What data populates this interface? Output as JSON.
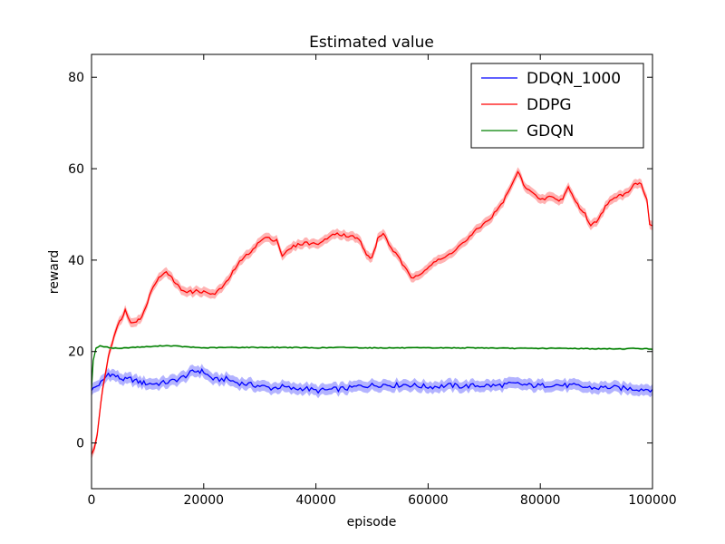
{
  "chart_data": {
    "type": "line",
    "title": "Estimated value",
    "xlabel": "episode",
    "ylabel": "reward",
    "xlim": [
      0,
      100000
    ],
    "ylim": [
      -10,
      85
    ],
    "xticks": [
      0,
      20000,
      40000,
      60000,
      80000,
      100000
    ],
    "yticks": [
      0,
      20,
      40,
      60,
      80
    ],
    "grid": false,
    "legend_position": "top-right",
    "series": [
      {
        "name": "DDQN_1000",
        "color": "#0000ff",
        "band_color": "#8080ff",
        "band": 1.2,
        "x": [
          0,
          1000,
          2000,
          3000,
          4000,
          5000,
          6000,
          7000,
          8000,
          9000,
          10000,
          12000,
          14000,
          16000,
          18000,
          19000,
          20000,
          21000,
          22000,
          24000,
          26000,
          28000,
          30000,
          32000,
          34000,
          36000,
          38000,
          40000,
          42000,
          44000,
          46000,
          48000,
          50000,
          52000,
          54000,
          56000,
          58000,
          60000,
          62000,
          64000,
          66000,
          68000,
          70000,
          72000,
          74000,
          76000,
          78000,
          80000,
          82000,
          84000,
          86000,
          88000,
          90000,
          92000,
          94000,
          96000,
          98000,
          100000
        ],
        "values": [
          11.5,
          12.5,
          13.5,
          15.2,
          14.8,
          14.2,
          13.8,
          14.0,
          13.5,
          13.2,
          13.0,
          13.0,
          13.4,
          14.2,
          15.5,
          15.8,
          15.6,
          14.5,
          13.8,
          14.0,
          13.2,
          12.8,
          12.5,
          12.0,
          12.3,
          11.8,
          12.0,
          11.4,
          11.6,
          11.8,
          12.0,
          12.5,
          12.6,
          12.8,
          12.6,
          12.8,
          12.5,
          12.3,
          12.4,
          12.6,
          12.4,
          12.5,
          12.6,
          12.5,
          12.8,
          12.9,
          12.6,
          12.5,
          12.8,
          12.6,
          12.5,
          12.2,
          12.0,
          12.2,
          12.0,
          11.9,
          11.8,
          11.7
        ]
      },
      {
        "name": "DDPG",
        "color": "#ff0000",
        "band_color": "#ff8080",
        "band": 1.0,
        "x": [
          0,
          500,
          1000,
          2000,
          3000,
          4000,
          5000,
          6000,
          6500,
          7000,
          8000,
          9000,
          10000,
          11000,
          12000,
          13000,
          14000,
          15000,
          16000,
          17000,
          18000,
          19000,
          20000,
          22000,
          24000,
          26000,
          28000,
          30000,
          31000,
          32000,
          33000,
          34000,
          36000,
          38000,
          40000,
          42000,
          43000,
          45000,
          47000,
          48000,
          49000,
          50000,
          51000,
          52000,
          53000,
          55000,
          57000,
          59000,
          61000,
          63000,
          65000,
          67000,
          69000,
          71000,
          73000,
          75000,
          76000,
          77000,
          78000,
          80000,
          82000,
          83000,
          84000,
          85000,
          86000,
          87000,
          88000,
          89000,
          90000,
          92000,
          94000,
          95000,
          96000,
          97000,
          98000,
          99000,
          99500,
          100000
        ],
        "values": [
          -2.5,
          -1.5,
          2.0,
          12.0,
          19.0,
          23.5,
          26.5,
          29.0,
          27.5,
          26.5,
          26.8,
          27.5,
          31.0,
          34.5,
          36.0,
          37.5,
          36.5,
          35.0,
          33.5,
          33.2,
          33.0,
          33.3,
          33.0,
          32.5,
          35.0,
          39.0,
          41.5,
          44.0,
          45.0,
          44.5,
          44.5,
          41.0,
          43.0,
          43.8,
          43.5,
          44.5,
          46.0,
          45.5,
          45.0,
          44.0,
          41.0,
          40.5,
          44.5,
          46.0,
          43.5,
          40.0,
          36.0,
          37.5,
          39.5,
          40.5,
          42.5,
          44.5,
          47.0,
          49.0,
          52.0,
          56.5,
          59.5,
          56.5,
          55.5,
          53.0,
          54.0,
          53.0,
          53.5,
          56.0,
          53.5,
          51.5,
          50.0,
          47.5,
          48.5,
          52.5,
          54.0,
          54.5,
          55.5,
          57.0,
          56.5,
          53.5,
          48.0,
          47.5
        ]
      },
      {
        "name": "GDQN",
        "color": "#008000",
        "band_color": "#80c080",
        "band": 0.25,
        "x": [
          0,
          300,
          800,
          1500,
          2500,
          3500,
          5000,
          7000,
          9000,
          11000,
          13000,
          15000,
          17000,
          20000,
          25000,
          30000,
          35000,
          40000,
          45000,
          50000,
          55000,
          60000,
          65000,
          70000,
          75000,
          80000,
          85000,
          90000,
          95000,
          97000,
          99000,
          100000
        ],
        "values": [
          12.0,
          18.0,
          20.8,
          21.2,
          21.0,
          20.8,
          20.7,
          20.9,
          21.0,
          21.1,
          21.3,
          21.2,
          21.0,
          20.8,
          20.9,
          20.9,
          20.9,
          20.8,
          20.9,
          20.8,
          20.8,
          20.8,
          20.8,
          20.8,
          20.7,
          20.7,
          20.7,
          20.6,
          20.6,
          20.7,
          20.6,
          20.5
        ]
      }
    ]
  }
}
